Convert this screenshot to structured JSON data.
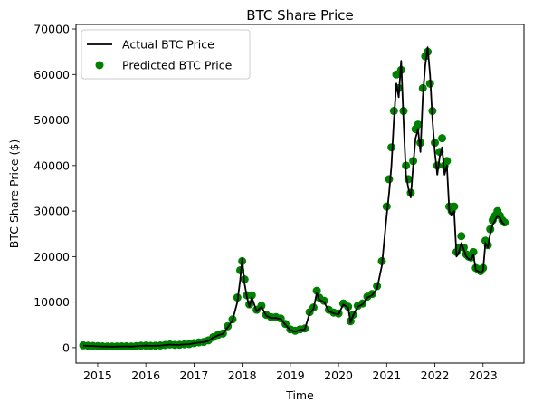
{
  "chart_data": {
    "type": "line",
    "title": "BTC Share Price",
    "xlabel": "Time",
    "ylabel": "BTC Share Price ($)",
    "xlim": [
      2014.55,
      2023.85
    ],
    "ylim": [
      -3400,
      71000
    ],
    "x_ticks": [
      2015,
      2016,
      2017,
      2018,
      2019,
      2020,
      2021,
      2022,
      2023
    ],
    "x_tick_labels": [
      "2015",
      "2016",
      "2017",
      "2018",
      "2019",
      "2020",
      "2021",
      "2022",
      "2023"
    ],
    "y_ticks": [
      0,
      10000,
      20000,
      30000,
      40000,
      50000,
      60000,
      70000
    ],
    "y_tick_labels": [
      "0",
      "10000",
      "20000",
      "30000",
      "40000",
      "50000",
      "60000",
      "70000"
    ],
    "grid": false,
    "legend_position": "top-left",
    "series": [
      {
        "name": "Actual BTC Price",
        "kind": "line",
        "color": "#000000",
        "x": [
          2014.7,
          2014.8,
          2014.9,
          2015.0,
          2015.1,
          2015.2,
          2015.3,
          2015.4,
          2015.5,
          2015.6,
          2015.7,
          2015.8,
          2015.9,
          2016.0,
          2016.1,
          2016.2,
          2016.3,
          2016.4,
          2016.5,
          2016.6,
          2016.7,
          2016.8,
          2016.9,
          2017.0,
          2017.1,
          2017.2,
          2017.3,
          2017.4,
          2017.5,
          2017.6,
          2017.7,
          2017.8,
          2017.9,
          2017.96,
          2018.0,
          2018.05,
          2018.1,
          2018.15,
          2018.2,
          2018.3,
          2018.4,
          2018.5,
          2018.6,
          2018.7,
          2018.8,
          2018.9,
          2019.0,
          2019.1,
          2019.2,
          2019.3,
          2019.4,
          2019.48,
          2019.55,
          2019.6,
          2019.7,
          2019.8,
          2019.9,
          2020.0,
          2020.1,
          2020.2,
          2020.25,
          2020.3,
          2020.4,
          2020.5,
          2020.6,
          2020.7,
          2020.8,
          2020.9,
          2021.0,
          2021.05,
          2021.1,
          2021.15,
          2021.2,
          2021.25,
          2021.3,
          2021.35,
          2021.4,
          2021.45,
          2021.5,
          2021.55,
          2021.6,
          2021.65,
          2021.7,
          2021.75,
          2021.8,
          2021.85,
          2021.9,
          2021.95,
          2022.0,
          2022.05,
          2022.1,
          2022.15,
          2022.2,
          2022.25,
          2022.3,
          2022.35,
          2022.4,
          2022.45,
          2022.5,
          2022.55,
          2022.6,
          2022.65,
          2022.7,
          2022.75,
          2022.8,
          2022.85,
          2022.9,
          2022.95,
          2023.0,
          2023.05,
          2023.1,
          2023.15,
          2023.2,
          2023.25,
          2023.3,
          2023.35,
          2023.4,
          2023.45
        ],
        "values": [
          450,
          380,
          350,
          300,
          250,
          240,
          230,
          240,
          270,
          280,
          240,
          310,
          400,
          430,
          390,
          410,
          450,
          550,
          680,
          590,
          610,
          700,
          750,
          950,
          1100,
          1200,
          1500,
          2200,
          2700,
          3000,
          4500,
          6000,
          10000,
          15000,
          19500,
          14000,
          11000,
          9000,
          11000,
          8000,
          9000,
          7000,
          6500,
          6500,
          6300,
          5000,
          3800,
          3500,
          3900,
          4000,
          7500,
          8500,
          12000,
          10500,
          10000,
          8000,
          7500,
          7300,
          9500,
          8800,
          5500,
          7000,
          9000,
          9500,
          11000,
          11500,
          13000,
          18000,
          29000,
          34000,
          40000,
          50000,
          58000,
          55000,
          63000,
          50000,
          38000,
          35000,
          33000,
          40000,
          46000,
          48000,
          43000,
          55000,
          62000,
          66000,
          60000,
          50000,
          43000,
          38000,
          42000,
          44000,
          38000,
          40000,
          30000,
          29000,
          30000,
          20000,
          21000,
          23000,
          21500,
          20000,
          19500,
          19300,
          20500,
          17000,
          16800,
          16500,
          17000,
          23000,
          22000,
          25000,
          27000,
          28000,
          29000,
          28500,
          27500,
          27000
        ]
      },
      {
        "name": "Predicted BTC Price",
        "kind": "scatter",
        "color": "#008000",
        "x": [
          2014.7,
          2014.8,
          2014.9,
          2015.0,
          2015.1,
          2015.2,
          2015.3,
          2015.4,
          2015.5,
          2015.6,
          2015.7,
          2015.8,
          2015.9,
          2016.0,
          2016.1,
          2016.2,
          2016.3,
          2016.4,
          2016.5,
          2016.6,
          2016.7,
          2016.8,
          2016.9,
          2017.0,
          2017.1,
          2017.2,
          2017.3,
          2017.4,
          2017.5,
          2017.6,
          2017.7,
          2017.8,
          2017.9,
          2017.96,
          2018.0,
          2018.05,
          2018.1,
          2018.15,
          2018.2,
          2018.3,
          2018.4,
          2018.5,
          2018.6,
          2018.7,
          2018.8,
          2018.9,
          2019.0,
          2019.1,
          2019.2,
          2019.3,
          2019.4,
          2019.48,
          2019.55,
          2019.6,
          2019.7,
          2019.8,
          2019.9,
          2020.0,
          2020.1,
          2020.2,
          2020.25,
          2020.3,
          2020.4,
          2020.5,
          2020.6,
          2020.7,
          2020.8,
          2020.9,
          2021.0,
          2021.05,
          2021.1,
          2021.15,
          2021.2,
          2021.25,
          2021.3,
          2021.35,
          2021.4,
          2021.45,
          2021.5,
          2021.55,
          2021.6,
          2021.65,
          2021.7,
          2021.75,
          2021.8,
          2021.85,
          2021.9,
          2021.95,
          2022.0,
          2022.05,
          2022.1,
          2022.15,
          2022.2,
          2022.25,
          2022.3,
          2022.35,
          2022.4,
          2022.45,
          2022.5,
          2022.55,
          2022.6,
          2022.65,
          2022.7,
          2022.75,
          2022.8,
          2022.85,
          2022.9,
          2022.95,
          2023.0,
          2023.05,
          2023.1,
          2023.15,
          2023.2,
          2023.25,
          2023.3,
          2023.35,
          2023.4,
          2023.45
        ],
        "values": [
          500,
          420,
          380,
          330,
          280,
          260,
          250,
          260,
          290,
          300,
          260,
          330,
          420,
          450,
          410,
          430,
          470,
          580,
          700,
          610,
          640,
          730,
          780,
          1000,
          1150,
          1250,
          1600,
          2300,
          2800,
          3100,
          4700,
          6200,
          11000,
          17000,
          19000,
          15000,
          11500,
          9500,
          11500,
          8300,
          9200,
          7200,
          6700,
          6700,
          6400,
          5200,
          4000,
          3700,
          4000,
          4200,
          7800,
          8800,
          12500,
          11000,
          10300,
          8300,
          7700,
          7500,
          9700,
          9000,
          5800,
          7200,
          9200,
          9700,
          11200,
          11800,
          13500,
          19000,
          31000,
          37000,
          44000,
          52000,
          60000,
          57000,
          61000,
          52000,
          40000,
          37000,
          34000,
          41000,
          48000,
          49000,
          45000,
          57000,
          64000,
          65000,
          58000,
          52000,
          45000,
          40000,
          43000,
          46000,
          40000,
          41000,
          31000,
          30000,
          31000,
          21000,
          22000,
          24500,
          22000,
          20500,
          20000,
          19800,
          21000,
          17500,
          17200,
          16800,
          17500,
          23500,
          22500,
          26000,
          28000,
          29000,
          30000,
          29000,
          28000,
          27500
        ]
      }
    ]
  }
}
